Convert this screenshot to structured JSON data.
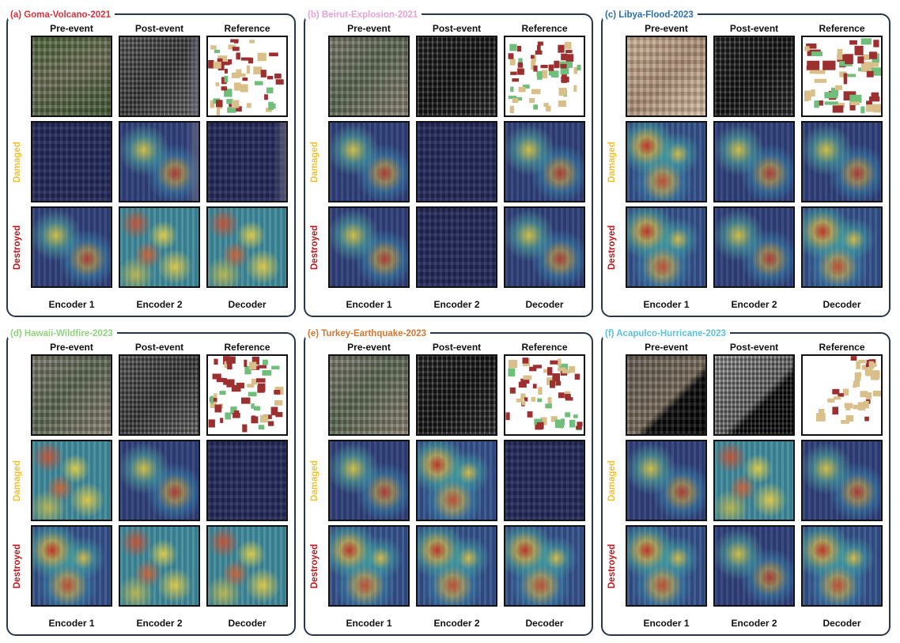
{
  "figure": {
    "column_headers": [
      "Pre-event",
      "Post-event",
      "Reference"
    ],
    "column_footers": [
      "Encoder 1",
      "Encoder 2",
      "Decoder"
    ],
    "row_labels": {
      "damaged": "Damaged",
      "destroyed": "Destroyed"
    },
    "colors": {
      "damaged_label": "#f2c230",
      "destroyed_label": "#c3151c",
      "panel_border": "#27384a",
      "reference_intact": "#d9bf8a",
      "reference_damaged": "#9c2f2f",
      "reference_minor": "#6fbf7b"
    },
    "panels": [
      {
        "title": "(a) Goma-Volcano-2021",
        "title_color": "#e0313b"
      },
      {
        "title": "(b) Beirut-Explosion-2021",
        "title_color": "#e7a3d6"
      },
      {
        "title": "(c) Libya-Flood-2023",
        "title_color": "#2a6fb0"
      },
      {
        "title": "(d) Hawaii-Wildfire-2023",
        "title_color": "#8fd47a"
      },
      {
        "title": "(e) Turkey-Earthquake-2023",
        "title_color": "#d7752c"
      },
      {
        "title": "(f) Acapulco-Hurricane-2023",
        "title_color": "#5cc3de"
      }
    ]
  }
}
